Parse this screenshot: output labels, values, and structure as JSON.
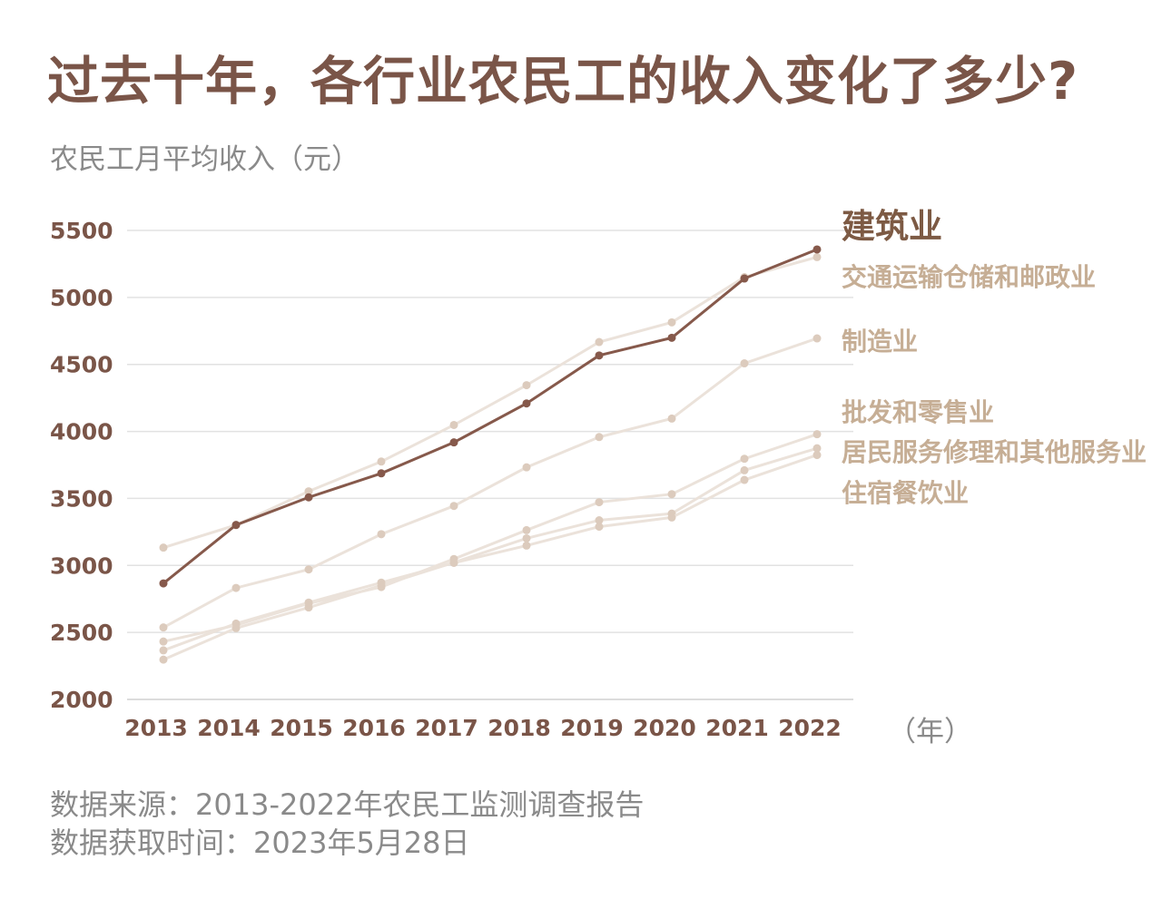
{
  "title": "过去十年，各行业农民工的收入变化了多少?",
  "subtitle": "农民工月平均收入（元）",
  "footer": {
    "source": "数据来源：2013-2022年农民工监测调查报告",
    "retrieved": "数据获取时间：2023年5月28日"
  },
  "chart_data": {
    "type": "line",
    "title": "过去十年，各行业农民工的收入变化了多少?",
    "ylabel": "农民工月平均收入（元）",
    "xlabel": "（年）",
    "x": [
      "2013",
      "2014",
      "2015",
      "2016",
      "2017",
      "2018",
      "2019",
      "2020",
      "2021",
      "2022"
    ],
    "yticks": [
      2000,
      2500,
      3000,
      3500,
      4000,
      4500,
      5000,
      5500
    ],
    "ylim": [
      2000,
      5500
    ],
    "grid": true,
    "legend": "right, labels at line ends",
    "highlight_color": "#86594b",
    "muted_color": "#ebe2da",
    "muted_label_color": "#c6ae95",
    "series": [
      {
        "name": "建筑业",
        "highlight": true,
        "values": [
          2866,
          3302,
          3508,
          3687,
          3918,
          4209,
          4567,
          4699,
          5141,
          5358
        ]
      },
      {
        "name": "交通运输仓储和邮政业",
        "values": [
          3133,
          3301,
          3553,
          3775,
          4048,
          4345,
          4667,
          4814,
          5151,
          5301
        ]
      },
      {
        "name": "制造业",
        "values": [
          2537,
          2832,
          2970,
          3233,
          3444,
          3732,
          3958,
          4096,
          4508,
          4694
        ]
      },
      {
        "name": "批发和零售业",
        "values": [
          2432,
          2554,
          2716,
          2839,
          3048,
          3263,
          3472,
          3532,
          3796,
          3979
        ]
      },
      {
        "name": "居民服务修理和其他服务业",
        "values": [
          2297,
          2532,
          2686,
          2851,
          3022,
          3202,
          3337,
          3387,
          3710,
          3874
        ]
      },
      {
        "name": "住宿餐饮业",
        "values": [
          2366,
          2566,
          2723,
          2872,
          3019,
          3148,
          3289,
          3358,
          3638,
          3824
        ]
      }
    ]
  }
}
